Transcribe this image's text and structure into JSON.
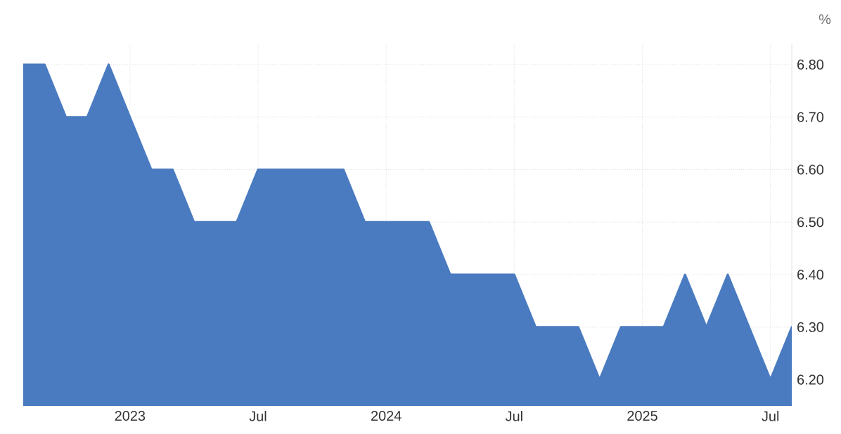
{
  "chart_data": {
    "type": "area",
    "ylabel": "%",
    "x": [
      "2022-08",
      "2022-09",
      "2022-10",
      "2022-11",
      "2022-12",
      "2023-01",
      "2023-02",
      "2023-03",
      "2023-04",
      "2023-05",
      "2023-06",
      "2023-07",
      "2023-08",
      "2023-09",
      "2023-10",
      "2023-11",
      "2023-12",
      "2024-01",
      "2024-02",
      "2024-03",
      "2024-04",
      "2024-05",
      "2024-06",
      "2024-07",
      "2024-08",
      "2024-09",
      "2024-10",
      "2024-11",
      "2024-12",
      "2025-01",
      "2025-02",
      "2025-03",
      "2025-04",
      "2025-05",
      "2025-06",
      "2025-07",
      "2025-08"
    ],
    "values": [
      6.8,
      6.8,
      6.7,
      6.7,
      6.8,
      6.7,
      6.6,
      6.6,
      6.5,
      6.5,
      6.5,
      6.6,
      6.6,
      6.6,
      6.6,
      6.6,
      6.5,
      6.5,
      6.5,
      6.5,
      6.4,
      6.4,
      6.4,
      6.4,
      6.3,
      6.3,
      6.3,
      6.2,
      6.3,
      6.3,
      6.3,
      6.4,
      6.3,
      6.4,
      6.3,
      6.2,
      6.3
    ],
    "color": "#4a7bc0",
    "xlim": [
      "2022-08",
      "2025-08"
    ],
    "xticks": [
      {
        "value": "2023-01",
        "label": "2023"
      },
      {
        "value": "2023-07",
        "label": "Jul"
      },
      {
        "value": "2024-01",
        "label": "2024"
      },
      {
        "value": "2024-07",
        "label": "Jul"
      },
      {
        "value": "2025-01",
        "label": "2025"
      },
      {
        "value": "2025-07",
        "label": "Jul"
      }
    ],
    "ylim": [
      6.15,
      6.84
    ],
    "yticks": [
      {
        "value": 6.2,
        "label": "6.20"
      },
      {
        "value": 6.3,
        "label": "6.30"
      },
      {
        "value": 6.4,
        "label": "6.40"
      },
      {
        "value": 6.5,
        "label": "6.50"
      },
      {
        "value": 6.6,
        "label": "6.60"
      },
      {
        "value": 6.7,
        "label": "6.70"
      },
      {
        "value": 6.8,
        "label": "6.80"
      }
    ],
    "grid": true
  }
}
